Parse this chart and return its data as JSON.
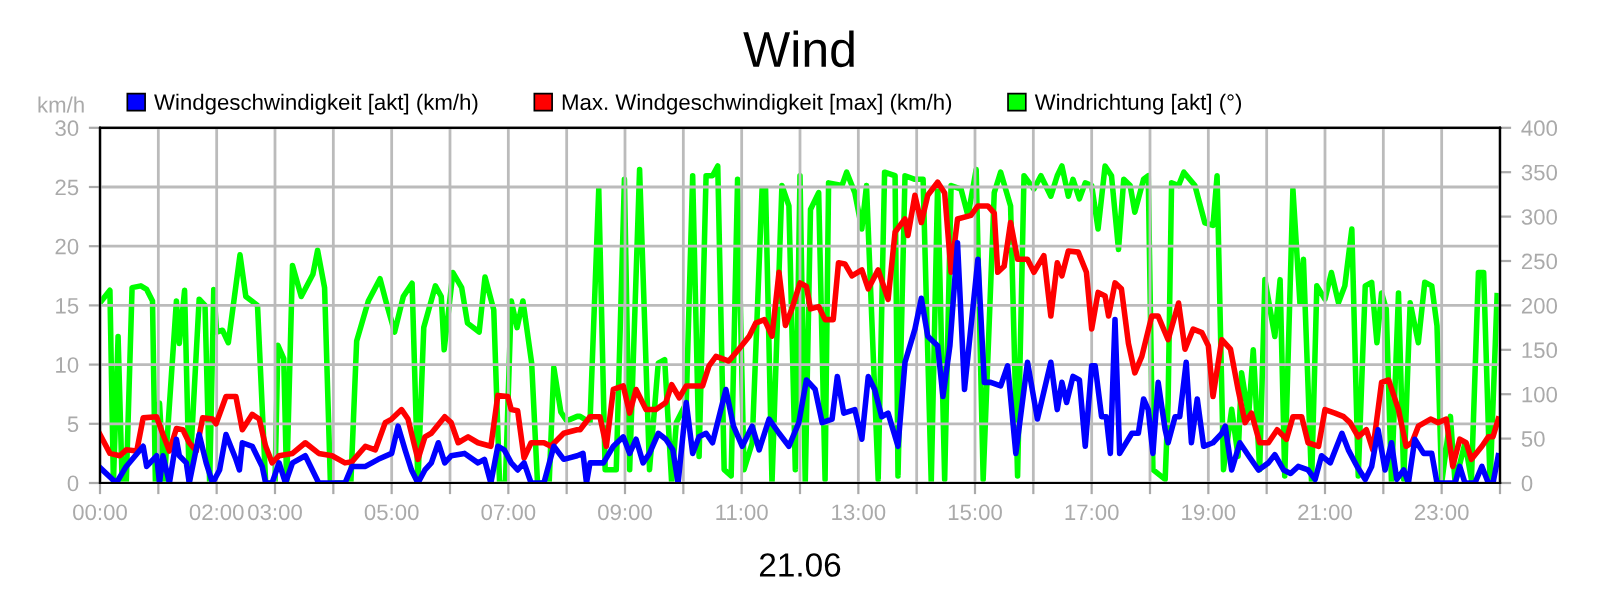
{
  "chart_data": {
    "type": "line",
    "title": "Wind",
    "xlabel": "21.06",
    "ylabel": "km/h",
    "xlim": [
      0,
      24
    ],
    "xticks": [
      {
        "value": 0,
        "label": "00:00"
      },
      {
        "value": 1,
        "label": null
      },
      {
        "value": 2,
        "label": "02:00"
      },
      {
        "value": 3,
        "label": "03:00"
      },
      {
        "value": 4,
        "label": null
      },
      {
        "value": 5,
        "label": "05:00"
      },
      {
        "value": 6,
        "label": null
      },
      {
        "value": 7,
        "label": "07:00"
      },
      {
        "value": 8,
        "label": null
      },
      {
        "value": 9,
        "label": "09:00"
      },
      {
        "value": 10,
        "label": null
      },
      {
        "value": 11,
        "label": "11:00"
      },
      {
        "value": 12,
        "label": null
      },
      {
        "value": 13,
        "label": "13:00"
      },
      {
        "value": 14,
        "label": null
      },
      {
        "value": 15,
        "label": "15:00"
      },
      {
        "value": 16,
        "label": null
      },
      {
        "value": 17,
        "label": "17:00"
      },
      {
        "value": 18,
        "label": null
      },
      {
        "value": 19,
        "label": "19:00"
      },
      {
        "value": 20,
        "label": null
      },
      {
        "value": 21,
        "label": "21:00"
      },
      {
        "value": 22,
        "label": null
      },
      {
        "value": 23,
        "label": "23:00"
      },
      {
        "value": 24,
        "label": null
      }
    ],
    "ylim": [
      0,
      30
    ],
    "yticks": [
      0,
      5,
      10,
      15,
      20,
      25,
      30
    ],
    "y2lim": [
      0,
      400
    ],
    "y2ticks": [
      0,
      50,
      100,
      150,
      200,
      250,
      300,
      350,
      400
    ],
    "grid": true,
    "legend": "top",
    "series": [
      {
        "name": "Windrichtung [akt] (°)",
        "color": "#00ff00",
        "axis": "y2",
        "x": [
          0,
          0.17,
          0.23,
          0.31,
          0.38,
          0.45,
          0.55,
          0.7,
          0.8,
          0.9,
          0.95,
          1.02,
          1.1,
          1.31,
          1.36,
          1.45,
          1.53,
          1.7,
          1.8,
          1.88,
          1.95,
          2.0,
          2.1,
          2.2,
          2.4,
          2.5,
          2.7,
          2.84,
          3.0,
          3.05,
          3.15,
          3.2,
          3.3,
          3.45,
          3.65,
          3.73,
          3.85,
          3.95,
          4.3,
          4.4,
          4.6,
          4.8,
          4.9,
          5.05,
          5.2,
          5.35,
          5.45,
          5.55,
          5.75,
          5.85,
          5.9,
          6.05,
          6.2,
          6.3,
          6.5,
          6.6,
          6.75,
          6.85,
          6.95,
          7.05,
          7.15,
          7.25,
          7.4,
          7.5,
          7.7,
          7.78,
          7.9,
          8.0,
          8.18,
          8.23,
          8.4,
          8.55,
          8.66,
          8.85,
          8.99,
          9.08,
          9.25,
          9.42,
          9.57,
          9.68,
          9.8,
          9.88,
          10.05,
          10.16,
          10.27,
          10.39,
          10.5,
          10.59,
          10.7,
          10.82,
          10.93,
          11.04,
          11.18,
          11.35,
          11.41,
          11.52,
          11.69,
          11.81,
          11.92,
          12.0,
          12.09,
          12.18,
          12.32,
          12.43,
          12.49,
          12.72,
          12.8,
          12.94,
          13.06,
          13.14,
          13.34,
          13.45,
          13.63,
          13.68,
          13.8,
          13.97,
          14.11,
          14.25,
          14.36,
          14.48,
          14.59,
          14.76,
          14.88,
          15.02,
          15.14,
          15.33,
          15.44,
          15.61,
          15.73,
          15.84,
          16.01,
          16.13,
          16.3,
          16.41,
          16.49,
          16.6,
          16.68,
          16.79,
          16.89,
          17.0,
          17.11,
          17.23,
          17.34,
          17.46,
          17.55,
          17.66,
          17.74,
          17.89,
          17.97,
          18.05,
          18.26,
          18.31,
          18.37,
          18.49,
          18.58,
          18.77,
          18.94,
          19.08,
          19.15,
          19.26,
          19.4,
          19.51,
          19.57,
          19.69,
          19.77,
          19.88,
          19.97,
          20.14,
          20.23,
          20.31,
          20.45,
          20.57,
          20.63,
          20.77,
          20.86,
          21.0,
          21.11,
          21.23,
          21.34,
          21.46,
          21.57,
          21.69,
          21.8,
          21.89,
          21.97,
          22.05,
          22.14,
          22.26,
          22.35,
          22.46,
          22.6,
          22.71,
          22.83,
          22.92,
          23.0,
          23.15,
          23.23,
          23.4,
          23.51,
          23.63,
          23.72,
          23.83,
          23.95
        ],
        "values": [
          203,
          217,
          0,
          165,
          0,
          0,
          220,
          222,
          218,
          205,
          0,
          90,
          0,
          205,
          157,
          217,
          0,
          207,
          200,
          0,
          218,
          170,
          172,
          158,
          257,
          210,
          200,
          0,
          0,
          155,
          140,
          0,
          245,
          210,
          235,
          262,
          220,
          0,
          0,
          160,
          205,
          230,
          205,
          170,
          210,
          225,
          0,
          175,
          222,
          210,
          150,
          237,
          220,
          180,
          170,
          232,
          195,
          0,
          0,
          205,
          175,
          205,
          135,
          0,
          0,
          130,
          80,
          70,
          75,
          75,
          68,
          331,
          15,
          15,
          342,
          15,
          353,
          15,
          135,
          139,
          0,
          68,
          90,
          346,
          30,
          346,
          346,
          357,
          15,
          8,
          342,
          15,
          45,
          331,
          331,
          0,
          335,
          312,
          15,
          346,
          0,
          308,
          327,
          4,
          338,
          335,
          350,
          327,
          286,
          335,
          4,
          350,
          346,
          8,
          346,
          342,
          342,
          0,
          338,
          4,
          335,
          331,
          301,
          353,
          4,
          327,
          350,
          312,
          8,
          346,
          331,
          346,
          323,
          346,
          357,
          323,
          342,
          320,
          338,
          335,
          286,
          357,
          346,
          263,
          342,
          335,
          305,
          342,
          346,
          15,
          4,
          90,
          338,
          335,
          350,
          335,
          293,
          290,
          346,
          15,
          83,
          30,
          124,
          75,
          150,
          15,
          229,
          165,
          229,
          8,
          331,
          203,
          252,
          0,
          222,
          207,
          237,
          203,
          222,
          286,
          8,
          222,
          226,
          158,
          214,
          196,
          0,
          214,
          4,
          203,
          158,
          226,
          222,
          177,
          0,
          75,
          0,
          45,
          4,
          237,
          237,
          0,
          211
        ]
      },
      {
        "name": "Max. Windgeschwindigkeit [max] (km/h)",
        "color": "#ff0000",
        "x": [
          0,
          0.17,
          0.34,
          0.45,
          0.63,
          0.74,
          0.97,
          1.08,
          1.19,
          1.31,
          1.42,
          1.53,
          1.65,
          1.76,
          1.93,
          1.99,
          2.16,
          2.33,
          2.44,
          2.61,
          2.73,
          2.84,
          2.95,
          3.07,
          3.3,
          3.52,
          3.75,
          3.98,
          4.2,
          4.32,
          4.55,
          4.72,
          4.89,
          5.0,
          5.17,
          5.28,
          5.45,
          5.57,
          5.68,
          5.91,
          6.02,
          6.14,
          6.31,
          6.48,
          6.7,
          6.82,
          6.99,
          7.05,
          7.16,
          7.27,
          7.39,
          7.61,
          7.73,
          7.95,
          8.18,
          8.23,
          8.4,
          8.57,
          8.68,
          8.8,
          8.97,
          9.08,
          9.19,
          9.36,
          9.53,
          9.7,
          9.8,
          9.93,
          10.05,
          10.33,
          10.44,
          10.56,
          10.78,
          10.95,
          11.13,
          11.24,
          11.39,
          11.52,
          11.64,
          11.75,
          11.86,
          12.0,
          12.11,
          12.18,
          12.32,
          12.43,
          12.57,
          12.66,
          12.77,
          12.89,
          13.06,
          13.17,
          13.34,
          13.51,
          13.63,
          13.8,
          13.85,
          13.97,
          14.08,
          14.19,
          14.36,
          14.48,
          14.59,
          14.7,
          14.93,
          15.05,
          15.22,
          15.33,
          15.39,
          15.5,
          15.61,
          15.73,
          15.9,
          16.01,
          16.18,
          16.3,
          16.41,
          16.49,
          16.6,
          16.77,
          16.91,
          17.0,
          17.11,
          17.23,
          17.29,
          17.4,
          17.51,
          17.63,
          17.74,
          17.86,
          18.03,
          18.14,
          18.31,
          18.49,
          18.6,
          18.74,
          18.89,
          19.0,
          19.08,
          19.23,
          19.38,
          19.51,
          19.63,
          19.74,
          19.88,
          20.03,
          20.18,
          20.34,
          20.45,
          20.6,
          20.71,
          20.89,
          21.0,
          21.17,
          21.32,
          21.43,
          21.57,
          21.71,
          21.82,
          21.97,
          22.09,
          22.26,
          22.39,
          22.49,
          22.6,
          22.81,
          22.94,
          23.08,
          23.19,
          23.31,
          23.42,
          23.51,
          23.69,
          23.8,
          23.88,
          23.97
        ],
        "values": [
          4.1,
          2.5,
          2.3,
          2.8,
          2.7,
          5.5,
          5.6,
          4.1,
          2.7,
          4.6,
          4.5,
          3.4,
          2.7,
          5.5,
          5.4,
          5.0,
          7.3,
          7.3,
          4.5,
          5.8,
          5.4,
          3.1,
          1.7,
          2.3,
          2.5,
          3.4,
          2.5,
          2.3,
          1.7,
          1.8,
          3.1,
          2.8,
          5.1,
          5.4,
          6.2,
          5.4,
          2.0,
          3.9,
          4.2,
          5.6,
          5.1,
          3.4,
          3.9,
          3.4,
          3.1,
          7.4,
          7.3,
          6.2,
          6.1,
          2.1,
          3.4,
          3.4,
          3.1,
          4.2,
          4.5,
          4.5,
          5.6,
          5.6,
          3.1,
          7.9,
          8.2,
          5.9,
          7.9,
          6.2,
          6.2,
          6.8,
          8.3,
          7.2,
          8.2,
          8.2,
          9.9,
          10.7,
          10.3,
          11.3,
          12.4,
          13.5,
          13.8,
          12.4,
          17.8,
          13.3,
          14.7,
          16.9,
          16.6,
          14.7,
          14.9,
          13.8,
          13.8,
          18.6,
          18.5,
          17.5,
          18.0,
          16.4,
          18.0,
          15.5,
          21.2,
          22.3,
          20.9,
          24.3,
          22.0,
          24.3,
          25.4,
          24.5,
          17.8,
          22.3,
          22.6,
          23.4,
          23.4,
          22.8,
          17.8,
          18.3,
          22.0,
          18.9,
          18.9,
          17.8,
          19.2,
          14.1,
          18.6,
          17.5,
          19.6,
          19.5,
          17.8,
          13.0,
          16.1,
          15.8,
          14.1,
          16.9,
          16.4,
          11.8,
          9.3,
          10.7,
          14.1,
          14.1,
          12.1,
          15.2,
          11.3,
          13.0,
          12.7,
          11.6,
          7.3,
          12.1,
          11.3,
          7.9,
          5.1,
          5.9,
          3.4,
          3.4,
          4.5,
          3.7,
          5.6,
          5.6,
          3.4,
          3.1,
          6.2,
          5.9,
          5.6,
          5.1,
          3.9,
          4.5,
          2.8,
          8.5,
          8.7,
          6.2,
          3.1,
          3.4,
          4.8,
          5.4,
          5.1,
          5.4,
          1.4,
          3.7,
          3.4,
          2.0,
          3.1,
          3.9,
          3.9,
          5.4
        ]
      },
      {
        "name": "Windgeschwindigkeit [akt] (km/h)",
        "color": "#0000ff",
        "x": [
          0,
          0.28,
          0.45,
          0.74,
          0.8,
          0.97,
          1.02,
          1.08,
          1.19,
          1.31,
          1.36,
          1.48,
          1.53,
          1.7,
          1.82,
          1.93,
          2.05,
          2.16,
          2.33,
          2.39,
          2.44,
          2.61,
          2.78,
          2.84,
          2.95,
          3.07,
          3.18,
          3.3,
          3.52,
          3.64,
          3.75,
          4.2,
          4.32,
          4.55,
          4.77,
          5.0,
          5.11,
          5.23,
          5.34,
          5.45,
          5.57,
          5.68,
          5.8,
          5.91,
          6.02,
          6.25,
          6.48,
          6.59,
          6.7,
          6.82,
          6.93,
          7.05,
          7.16,
          7.27,
          7.39,
          7.61,
          7.78,
          7.95,
          8.18,
          8.28,
          8.34,
          8.4,
          8.63,
          8.8,
          8.97,
          9.08,
          9.19,
          9.31,
          9.42,
          9.57,
          9.7,
          9.82,
          9.91,
          10.05,
          10.16,
          10.27,
          10.39,
          10.5,
          10.73,
          10.86,
          11.01,
          11.18,
          11.3,
          11.47,
          11.64,
          11.81,
          11.98,
          12.11,
          12.26,
          12.38,
          12.55,
          12.64,
          12.75,
          12.94,
          13.06,
          13.17,
          13.28,
          13.4,
          13.51,
          13.68,
          13.8,
          13.97,
          14.08,
          14.19,
          14.36,
          14.45,
          14.57,
          14.7,
          14.82,
          15.05,
          15.16,
          15.27,
          15.44,
          15.56,
          15.7,
          15.9,
          16.07,
          16.3,
          16.41,
          16.49,
          16.57,
          16.68,
          16.79,
          16.89,
          17.0,
          17.06,
          17.17,
          17.25,
          17.32,
          17.4,
          17.48,
          17.69,
          17.8,
          17.89,
          17.97,
          18.05,
          18.14,
          18.26,
          18.31,
          18.43,
          18.51,
          18.62,
          18.71,
          18.81,
          18.92,
          19.08,
          19.23,
          19.29,
          19.4,
          19.54,
          19.69,
          19.86,
          20.03,
          20.14,
          20.29,
          20.41,
          20.54,
          20.71,
          20.83,
          20.94,
          21.09,
          21.29,
          21.4,
          21.55,
          21.69,
          21.8,
          21.91,
          22.03,
          22.14,
          22.23,
          22.35,
          22.43,
          22.54,
          22.69,
          22.83,
          22.92,
          23.23,
          23.31,
          23.4,
          23.57,
          23.69,
          23.8,
          23.88,
          23.97
        ],
        "values": [
          1.3,
          0,
          1.4,
          3.1,
          1.4,
          2.3,
          0,
          2.3,
          0,
          3.7,
          2.3,
          1.7,
          0,
          4.1,
          1.7,
          0,
          1.1,
          4.1,
          2.0,
          1.1,
          3.4,
          3.1,
          1.4,
          0,
          0,
          1.7,
          0,
          1.7,
          2.3,
          1.1,
          0,
          0,
          1.4,
          1.4,
          2.0,
          2.5,
          4.8,
          2.8,
          1.1,
          0,
          1.1,
          1.7,
          3.4,
          1.7,
          2.3,
          2.5,
          1.7,
          2.0,
          0,
          3.1,
          2.8,
          1.7,
          1.1,
          1.7,
          0,
          0,
          3.1,
          2.0,
          2.3,
          2.5,
          0,
          1.7,
          1.7,
          3.1,
          3.9,
          2.5,
          3.7,
          1.7,
          2.5,
          4.2,
          3.7,
          2.8,
          0,
          6.8,
          2.5,
          3.9,
          4.2,
          3.4,
          7.9,
          4.8,
          3.1,
          4.8,
          2.8,
          5.4,
          4.2,
          3.1,
          5.1,
          8.7,
          7.9,
          5.1,
          5.4,
          9.0,
          5.9,
          6.2,
          3.7,
          9.0,
          7.9,
          5.6,
          5.9,
          3.1,
          10.2,
          13.0,
          15.6,
          12.4,
          11.6,
          7.3,
          11.6,
          20.3,
          7.9,
          18.9,
          8.5,
          8.5,
          8.2,
          9.9,
          2.5,
          10.2,
          5.4,
          10.2,
          6.2,
          8.5,
          6.8,
          9.0,
          8.7,
          3.1,
          9.9,
          9.9,
          5.6,
          5.6,
          2.5,
          13.8,
          2.5,
          4.2,
          4.2,
          7.1,
          6.2,
          2.5,
          8.5,
          4.5,
          3.4,
          5.6,
          5.6,
          10.2,
          3.4,
          7.1,
          3.1,
          3.4,
          4.2,
          4.8,
          1.1,
          3.4,
          2.3,
          1.1,
          1.7,
          2.4,
          1.1,
          0.8,
          1.4,
          1.1,
          0.3,
          2.3,
          1.7,
          4.2,
          2.8,
          1.4,
          0.3,
          1.4,
          4.5,
          1.1,
          3.4,
          0.3,
          1.1,
          0,
          3.7,
          2.5,
          2.5,
          0,
          0,
          1.4,
          0,
          0,
          1.4,
          0,
          0,
          2.3
        ]
      }
    ]
  }
}
